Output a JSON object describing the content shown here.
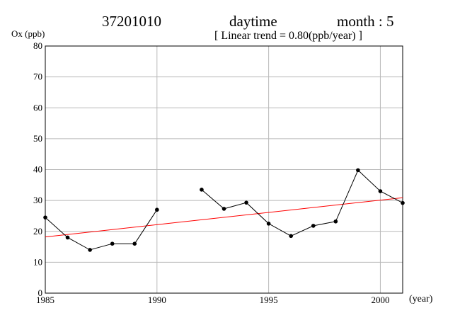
{
  "header": {
    "station": "37201010",
    "period": "daytime",
    "month": "month : 5",
    "trend": "[ Linear trend = 0.80(ppb/year) ]"
  },
  "chart_data": {
    "type": "line",
    "ylabel": "Ox (ppb)",
    "xlabel": "(year)",
    "xlim": [
      1985,
      2001
    ],
    "ylim": [
      0,
      80
    ],
    "x_ticks": [
      1985,
      1990,
      1995,
      2000
    ],
    "y_ticks": [
      0,
      10,
      20,
      30,
      40,
      50,
      60,
      70,
      80
    ],
    "grid": true,
    "series": [
      {
        "color": "#000000",
        "markers": true,
        "x": [
          1985,
          1986,
          1987,
          1988,
          1989,
          1990,
          1991,
          1992,
          1993,
          1994,
          1995,
          1996,
          1997,
          1998,
          1999,
          2000,
          2001
        ],
        "y": [
          24.5,
          18,
          14,
          16,
          16,
          27,
          null,
          33.5,
          27.3,
          29.3,
          22.5,
          18.5,
          21.8,
          23.2,
          39.8,
          33,
          29.2
        ]
      }
    ],
    "trend_line": {
      "color": "#ff0000",
      "x": [
        1985,
        2001
      ],
      "y": [
        18.2,
        30.9
      ]
    }
  }
}
